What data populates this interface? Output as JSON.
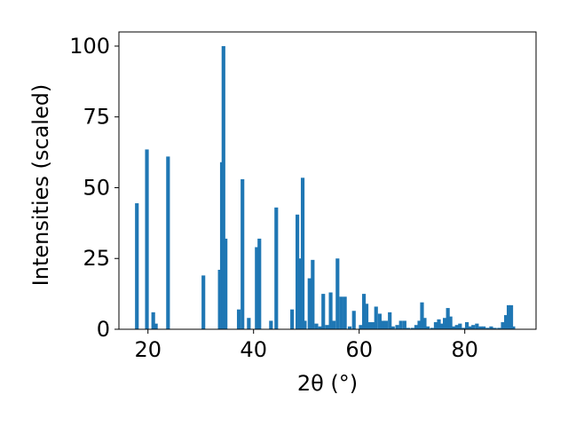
{
  "chart_data": {
    "type": "bar",
    "title": "",
    "xlabel": "2θ (°)",
    "ylabel": "Intensities (scaled)",
    "xlim": [
      14.5,
      93.5
    ],
    "ylim": [
      0,
      105
    ],
    "xticks": [
      20,
      40,
      60,
      80
    ],
    "yticks": [
      0,
      25,
      50,
      75,
      100
    ],
    "xtick_labels": [
      "20",
      "40",
      "60",
      "80"
    ],
    "ytick_labels": [
      "0",
      "25",
      "50",
      "75",
      "100"
    ],
    "grid": false,
    "bar_color": "#1f77b4",
    "bar_width": 0.7,
    "x": [
      17.9,
      19.8,
      21.0,
      21.5,
      23.8,
      30.5,
      33.6,
      34.0,
      34.3,
      34.7,
      37.2,
      37.9,
      39.1,
      40.6,
      41.1,
      43.3,
      44.3,
      47.3,
      48.3,
      48.7,
      49.3,
      49.7,
      50.6,
      51.2,
      51.9,
      52.6,
      53.2,
      53.9,
      54.6,
      55.2,
      55.9,
      56.6,
      57.3,
      58.2,
      59.0,
      60.3,
      60.9,
      61.4,
      62.0,
      62.6,
      63.2,
      63.9,
      64.5,
      65.1,
      65.8,
      66.4,
      67.2,
      67.9,
      68.6,
      69.3,
      70.1,
      70.8,
      71.4,
      71.9,
      72.4,
      73.0,
      73.8,
      74.5,
      75.1,
      75.6,
      76.2,
      76.8,
      77.3,
      77.9,
      78.5,
      79.1,
      79.8,
      80.4,
      81.0,
      81.6,
      82.3,
      83.0,
      83.6,
      84.3,
      85.0,
      85.7,
      86.5,
      87.2,
      87.8,
      88.3,
      88.8,
      89.2
    ],
    "values": [
      44.5,
      63.5,
      6,
      2,
      61,
      19,
      21,
      59,
      100,
      32,
      7,
      53,
      4,
      29,
      32,
      3,
      43,
      7,
      40.5,
      25,
      53.5,
      3,
      18,
      24.5,
      2,
      1,
      12.5,
      1.5,
      13,
      3,
      25,
      11.5,
      11.5,
      1,
      6.5,
      1.5,
      12.5,
      9,
      2.5,
      2.5,
      8,
      5.5,
      3,
      3,
      6,
      1,
      1.5,
      3,
      3,
      0.5,
      0.5,
      1.5,
      3,
      9.5,
      4,
      1,
      0.5,
      2.5,
      3.5,
      2,
      4,
      7.5,
      4.5,
      1,
      1.5,
      2,
      0.5,
      2.5,
      1,
      1.5,
      2,
      1,
      1,
      0.5,
      1,
      0.5,
      0.5,
      2.5,
      5,
      8.5,
      8.5,
      1
    ]
  }
}
